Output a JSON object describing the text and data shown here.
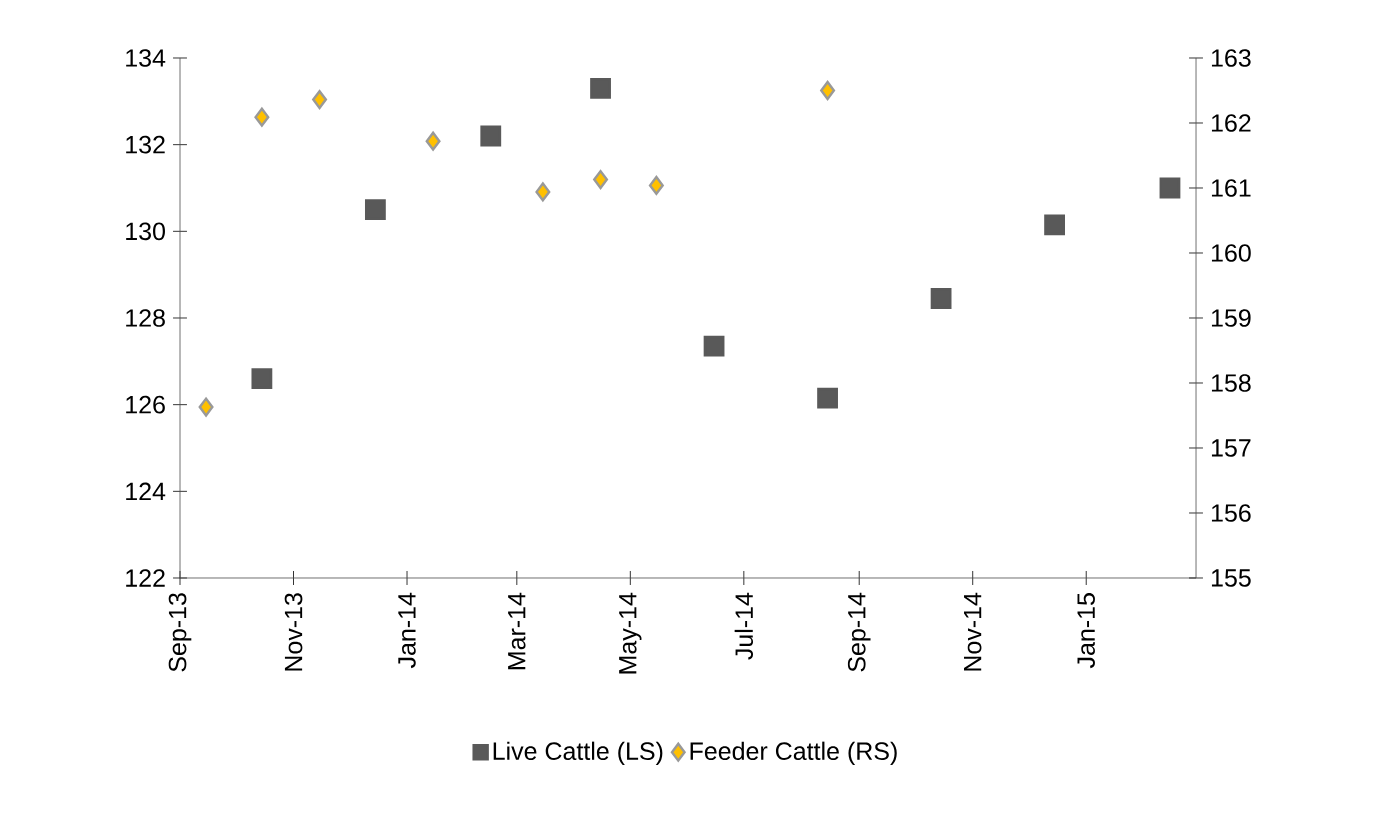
{
  "chart_data": {
    "type": "scatter",
    "xlim": [
      "2013-09-01",
      "2015-03-01"
    ],
    "xticks": [
      {
        "value": "2013-09-01",
        "label": "Sep-13"
      },
      {
        "value": "2013-11-01",
        "label": "Nov-13"
      },
      {
        "value": "2014-01-01",
        "label": "Jan-14"
      },
      {
        "value": "2014-03-01",
        "label": "Mar-14"
      },
      {
        "value": "2014-05-01",
        "label": "May-14"
      },
      {
        "value": "2014-07-01",
        "label": "Jul-14"
      },
      {
        "value": "2014-09-01",
        "label": "Sep-14"
      },
      {
        "value": "2014-11-01",
        "label": "Nov-14"
      },
      {
        "value": "2015-01-01",
        "label": "Jan-15"
      }
    ],
    "ylim": [
      122,
      134
    ],
    "yticks": [
      122,
      124,
      126,
      128,
      130,
      132,
      134
    ],
    "y2lim": [
      155,
      163
    ],
    "y2ticks": [
      155,
      156,
      157,
      158,
      159,
      160,
      161,
      162,
      163
    ],
    "legend": "bottom",
    "grid": false,
    "series": [
      {
        "name": "Live Cattle (LS)",
        "color": "#595959",
        "marker": "square",
        "axis": "y",
        "x": [
          "2013-10-15",
          "2013-12-15",
          "2014-02-15",
          "2014-04-15",
          "2014-06-15",
          "2014-08-15",
          "2014-10-15",
          "2014-12-15",
          "2015-02-15"
        ],
        "values": [
          126.6,
          130.5,
          132.2,
          133.3,
          127.35,
          126.15,
          128.45,
          130.15,
          131.0
        ]
      },
      {
        "name": "Feeder Cattle (RS)",
        "color": "#ffc000",
        "marker": "diamond",
        "axis": "y2",
        "x": [
          "2013-09-15",
          "2013-10-15",
          "2013-11-15",
          "2014-01-15",
          "2014-03-15",
          "2014-04-15",
          "2014-05-15",
          "2014-08-15"
        ],
        "values": [
          157.63,
          162.09,
          162.36,
          161.72,
          160.94,
          161.13,
          161.04,
          162.5
        ]
      }
    ]
  }
}
